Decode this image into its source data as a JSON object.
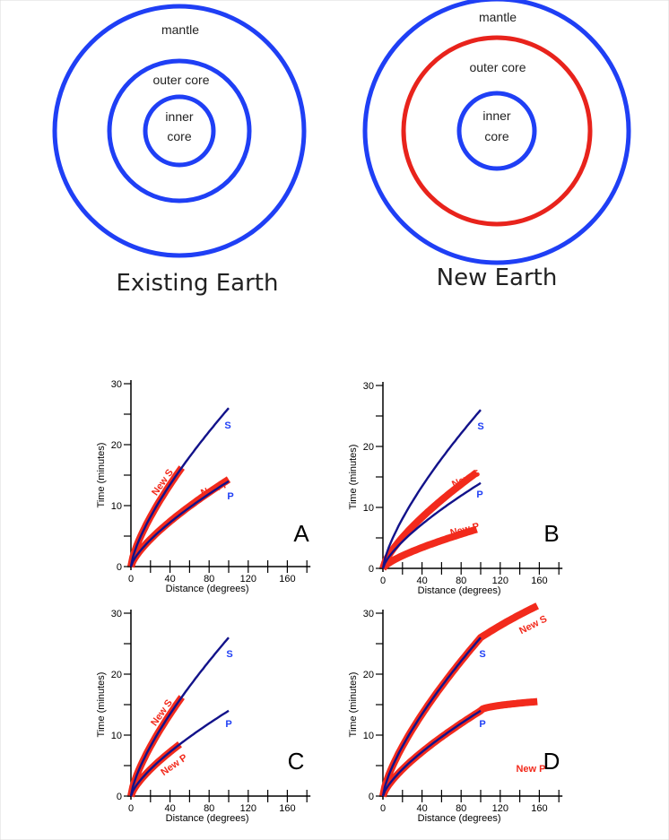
{
  "earth_models": [
    {
      "title": "Existing Earth",
      "layers": {
        "mantle": "mantle",
        "outer_core": "outer core",
        "inner_core_1": "inner",
        "inner_core_2": "core"
      },
      "colors": {
        "outer": "#1f3ff5",
        "middle": "#1f3ff5",
        "inner": "#1f3ff5"
      }
    },
    {
      "title": "New Earth",
      "layers": {
        "mantle": "mantle",
        "outer_core": "outer core",
        "inner_core_1": "inner",
        "inner_core_2": "core"
      },
      "colors": {
        "outer": "#1f3ff5",
        "middle": "#e8231c",
        "inner": "#1f3ff5"
      }
    }
  ],
  "colors": {
    "existing": "#12128a",
    "new": "#f22a1c",
    "label_blue": "#1f3ff5"
  },
  "chart_data": [
    {
      "type": "line",
      "panel": "A",
      "xlabel": "Distance (degrees)",
      "ylabel": "Time (minutes)",
      "xticks": [
        0,
        40,
        80,
        120,
        160
      ],
      "yticks": [
        0,
        10,
        20,
        30
      ],
      "xlim": [
        0,
        180
      ],
      "ylim": [
        0,
        30
      ],
      "series": [
        {
          "name": "S",
          "group": "existing",
          "xmax": 100,
          "k": 26
        },
        {
          "name": "P",
          "group": "existing",
          "xmax": 100,
          "k": 14
        },
        {
          "name": "New S",
          "group": "new",
          "xmax": 52,
          "k": 26
        },
        {
          "name": "New P",
          "group": "new",
          "xmax": 100,
          "k": 14.3
        }
      ]
    },
    {
      "type": "line",
      "panel": "B",
      "xlabel": "Distance (degrees)",
      "ylabel": "Time (minutes)",
      "xticks": [
        0,
        40,
        80,
        120,
        160
      ],
      "yticks": [
        0,
        10,
        20,
        30
      ],
      "xlim": [
        0,
        180
      ],
      "ylim": [
        0,
        30
      ],
      "series": [
        {
          "name": "S",
          "group": "existing",
          "xmax": 100,
          "k": 26
        },
        {
          "name": "P",
          "group": "existing",
          "xmax": 100,
          "k": 14
        },
        {
          "name": "New S",
          "group": "new",
          "xmax": 97,
          "k": 16.2
        },
        {
          "name": "New P",
          "group": "new",
          "xmax": 97,
          "k": 6.6
        }
      ]
    },
    {
      "type": "line",
      "panel": "C",
      "xlabel": "Distance (degrees)",
      "ylabel": "Time (minutes)",
      "xticks": [
        0,
        40,
        80,
        120,
        160
      ],
      "yticks": [
        0,
        10,
        20,
        30
      ],
      "xlim": [
        0,
        180
      ],
      "ylim": [
        0,
        30
      ],
      "series": [
        {
          "name": "S",
          "group": "existing",
          "xmax": 100,
          "k": 26
        },
        {
          "name": "P",
          "group": "existing",
          "xmax": 100,
          "k": 14
        },
        {
          "name": "New S",
          "group": "new",
          "xmax": 52,
          "k": 26
        },
        {
          "name": "New P",
          "group": "new",
          "xmax": 50,
          "k": 14
        }
      ]
    },
    {
      "type": "line",
      "panel": "D",
      "xlabel": "Distance (degrees)",
      "ylabel": "Time (minutes)",
      "xticks": [
        0,
        40,
        80,
        120,
        160
      ],
      "yticks": [
        0,
        10,
        20,
        30
      ],
      "xlim": [
        0,
        180
      ],
      "ylim": [
        0,
        30
      ],
      "series": [
        {
          "name": "S",
          "group": "existing",
          "xmax": 100,
          "k": 26
        },
        {
          "name": "P",
          "group": "existing",
          "xmax": 100,
          "k": 14
        },
        {
          "name": "New S",
          "group": "new",
          "xmax": 158,
          "k": 26,
          "ext": "S"
        },
        {
          "name": "New P",
          "group": "new",
          "xmax": 158,
          "k": 14,
          "ext": "P"
        }
      ]
    }
  ]
}
